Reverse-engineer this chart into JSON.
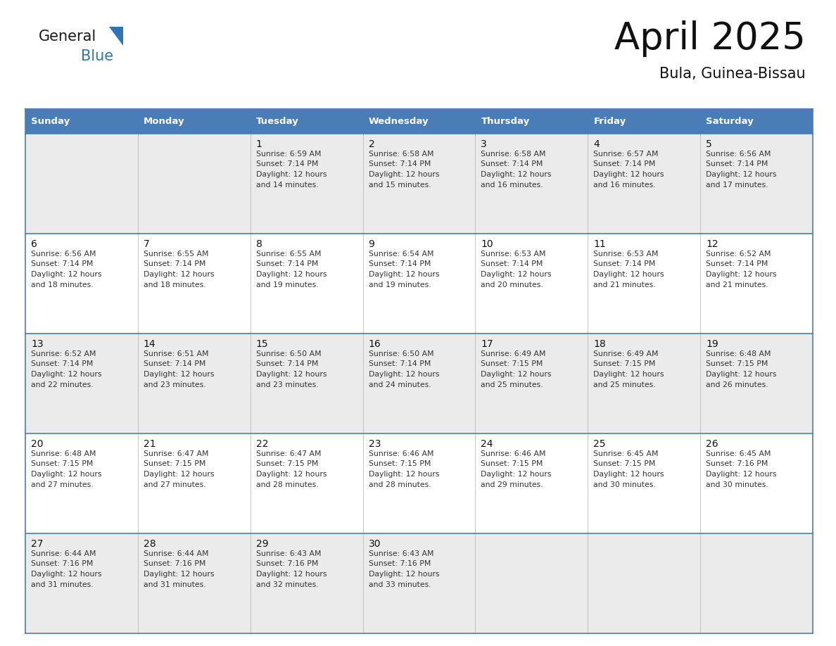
{
  "title": "April 2025",
  "subtitle": "Bula, Guinea-Bissau",
  "header_bg": "#4a7db5",
  "header_text_color": "#ffffff",
  "day_names": [
    "Sunday",
    "Monday",
    "Tuesday",
    "Wednesday",
    "Thursday",
    "Friday",
    "Saturday"
  ],
  "row_bg_odd": "#ebebeb",
  "row_bg_even": "#ffffff",
  "text_color": "#333333",
  "date_color": "#222222",
  "border_color": "#4a7db5",
  "blue_color": "#2e75b6",
  "logo_general_color": "#1a1a1a",
  "weeks": [
    {
      "days": [
        {
          "date": "",
          "sunrise": "",
          "sunset": "",
          "daylight": ""
        },
        {
          "date": "",
          "sunrise": "",
          "sunset": "",
          "daylight": ""
        },
        {
          "date": "1",
          "sunrise": "6:59 AM",
          "sunset": "7:14 PM",
          "daylight": "12 hours and 14 minutes."
        },
        {
          "date": "2",
          "sunrise": "6:58 AM",
          "sunset": "7:14 PM",
          "daylight": "12 hours and 15 minutes."
        },
        {
          "date": "3",
          "sunrise": "6:58 AM",
          "sunset": "7:14 PM",
          "daylight": "12 hours and 16 minutes."
        },
        {
          "date": "4",
          "sunrise": "6:57 AM",
          "sunset": "7:14 PM",
          "daylight": "12 hours and 16 minutes."
        },
        {
          "date": "5",
          "sunrise": "6:56 AM",
          "sunset": "7:14 PM",
          "daylight": "12 hours and 17 minutes."
        }
      ]
    },
    {
      "days": [
        {
          "date": "6",
          "sunrise": "6:56 AM",
          "sunset": "7:14 PM",
          "daylight": "12 hours and 18 minutes."
        },
        {
          "date": "7",
          "sunrise": "6:55 AM",
          "sunset": "7:14 PM",
          "daylight": "12 hours and 18 minutes."
        },
        {
          "date": "8",
          "sunrise": "6:55 AM",
          "sunset": "7:14 PM",
          "daylight": "12 hours and 19 minutes."
        },
        {
          "date": "9",
          "sunrise": "6:54 AM",
          "sunset": "7:14 PM",
          "daylight": "12 hours and 19 minutes."
        },
        {
          "date": "10",
          "sunrise": "6:53 AM",
          "sunset": "7:14 PM",
          "daylight": "12 hours and 20 minutes."
        },
        {
          "date": "11",
          "sunrise": "6:53 AM",
          "sunset": "7:14 PM",
          "daylight": "12 hours and 21 minutes."
        },
        {
          "date": "12",
          "sunrise": "6:52 AM",
          "sunset": "7:14 PM",
          "daylight": "12 hours and 21 minutes."
        }
      ]
    },
    {
      "days": [
        {
          "date": "13",
          "sunrise": "6:52 AM",
          "sunset": "7:14 PM",
          "daylight": "12 hours and 22 minutes."
        },
        {
          "date": "14",
          "sunrise": "6:51 AM",
          "sunset": "7:14 PM",
          "daylight": "12 hours and 23 minutes."
        },
        {
          "date": "15",
          "sunrise": "6:50 AM",
          "sunset": "7:14 PM",
          "daylight": "12 hours and 23 minutes."
        },
        {
          "date": "16",
          "sunrise": "6:50 AM",
          "sunset": "7:14 PM",
          "daylight": "12 hours and 24 minutes."
        },
        {
          "date": "17",
          "sunrise": "6:49 AM",
          "sunset": "7:15 PM",
          "daylight": "12 hours and 25 minutes."
        },
        {
          "date": "18",
          "sunrise": "6:49 AM",
          "sunset": "7:15 PM",
          "daylight": "12 hours and 25 minutes."
        },
        {
          "date": "19",
          "sunrise": "6:48 AM",
          "sunset": "7:15 PM",
          "daylight": "12 hours and 26 minutes."
        }
      ]
    },
    {
      "days": [
        {
          "date": "20",
          "sunrise": "6:48 AM",
          "sunset": "7:15 PM",
          "daylight": "12 hours and 27 minutes."
        },
        {
          "date": "21",
          "sunrise": "6:47 AM",
          "sunset": "7:15 PM",
          "daylight": "12 hours and 27 minutes."
        },
        {
          "date": "22",
          "sunrise": "6:47 AM",
          "sunset": "7:15 PM",
          "daylight": "12 hours and 28 minutes."
        },
        {
          "date": "23",
          "sunrise": "6:46 AM",
          "sunset": "7:15 PM",
          "daylight": "12 hours and 28 minutes."
        },
        {
          "date": "24",
          "sunrise": "6:46 AM",
          "sunset": "7:15 PM",
          "daylight": "12 hours and 29 minutes."
        },
        {
          "date": "25",
          "sunrise": "6:45 AM",
          "sunset": "7:15 PM",
          "daylight": "12 hours and 30 minutes."
        },
        {
          "date": "26",
          "sunrise": "6:45 AM",
          "sunset": "7:16 PM",
          "daylight": "12 hours and 30 minutes."
        }
      ]
    },
    {
      "days": [
        {
          "date": "27",
          "sunrise": "6:44 AM",
          "sunset": "7:16 PM",
          "daylight": "12 hours and 31 minutes."
        },
        {
          "date": "28",
          "sunrise": "6:44 AM",
          "sunset": "7:16 PM",
          "daylight": "12 hours and 31 minutes."
        },
        {
          "date": "29",
          "sunrise": "6:43 AM",
          "sunset": "7:16 PM",
          "daylight": "12 hours and 32 minutes."
        },
        {
          "date": "30",
          "sunrise": "6:43 AM",
          "sunset": "7:16 PM",
          "daylight": "12 hours and 33 minutes."
        },
        {
          "date": "",
          "sunrise": "",
          "sunset": "",
          "daylight": ""
        },
        {
          "date": "",
          "sunrise": "",
          "sunset": "",
          "daylight": ""
        },
        {
          "date": "",
          "sunrise": "",
          "sunset": "",
          "daylight": ""
        }
      ]
    }
  ]
}
